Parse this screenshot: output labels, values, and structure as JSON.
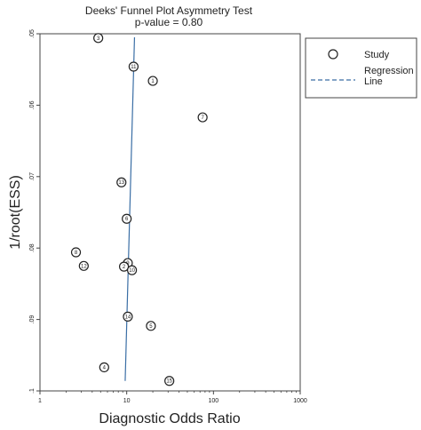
{
  "chart_data": {
    "type": "scatter",
    "title": "Deeks' Funnel Plot Asymmetry Test",
    "subtitle": "p-value = 0.80",
    "xlabel": "Diagnostic Odds Ratio",
    "ylabel": "1/root(ESS)",
    "x_scale": "log",
    "xlim": [
      1,
      1000
    ],
    "ylim": [
      0.05,
      0.1
    ],
    "y_reversed": true,
    "x_ticks": [
      "1",
      "10",
      "100",
      "1000"
    ],
    "y_ticks": [
      ".05",
      ".06",
      ".07",
      ".08",
      ".09",
      ".1"
    ],
    "grid": false,
    "legend_position": "right",
    "legend": [
      {
        "label": "Study",
        "marker": "circle"
      },
      {
        "label": "Regression\nLine",
        "marker": "dashed-line"
      }
    ],
    "series": [
      {
        "name": "Study",
        "points": [
          {
            "label": "3",
            "x": 4.7,
            "y": 0.0506
          },
          {
            "label": "11",
            "x": 12.0,
            "y": 0.0546
          },
          {
            "label": "1",
            "x": 20.0,
            "y": 0.0566
          },
          {
            "label": "7",
            "x": 75.0,
            "y": 0.0617
          },
          {
            "label": "13",
            "x": 8.7,
            "y": 0.0708
          },
          {
            "label": "6",
            "x": 10.0,
            "y": 0.0759
          },
          {
            "label": "8",
            "x": 2.6,
            "y": 0.0806
          },
          {
            "label": "12",
            "x": 3.2,
            "y": 0.0825
          },
          {
            "label": "9",
            "x": 10.3,
            "y": 0.0821
          },
          {
            "label": "2",
            "x": 9.3,
            "y": 0.0826
          },
          {
            "label": "10",
            "x": 11.5,
            "y": 0.0831
          },
          {
            "label": "14",
            "x": 10.3,
            "y": 0.0896
          },
          {
            "label": "5",
            "x": 19.0,
            "y": 0.0909
          },
          {
            "label": "4",
            "x": 5.5,
            "y": 0.0967
          },
          {
            "label": "15",
            "x": 31.0,
            "y": 0.0986
          }
        ]
      },
      {
        "name": "Regression Line",
        "line": [
          {
            "x": 12.3,
            "y": 0.0505
          },
          {
            "x": 9.6,
            "y": 0.0986
          }
        ]
      }
    ],
    "colors": {
      "marker": "#222222",
      "regression": "#3a6ea5",
      "frame": "#444444"
    }
  }
}
